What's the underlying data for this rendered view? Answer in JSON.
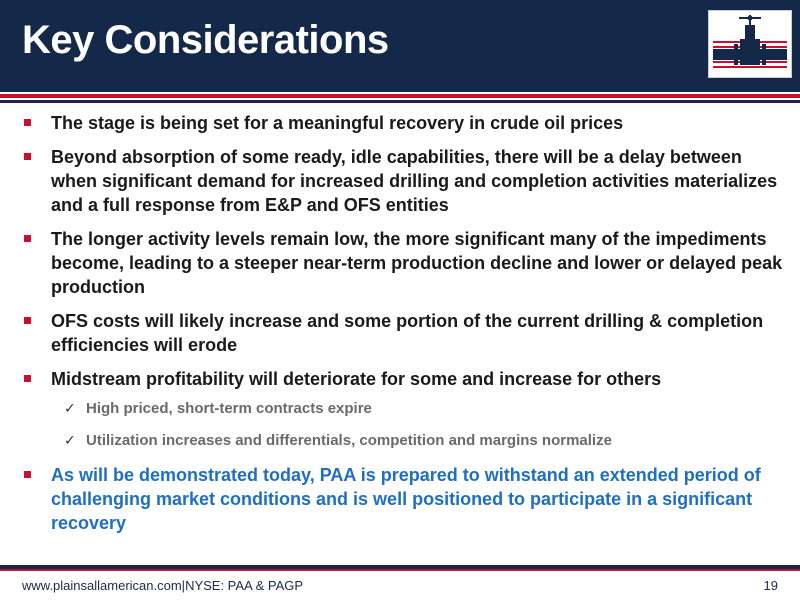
{
  "slide": {
    "title": "Key Considerations",
    "page_number": "19"
  },
  "logo": {
    "icon": "plains-valve-logo",
    "colors": {
      "navy": "#14284a",
      "red": "#c8102e"
    }
  },
  "bullets": [
    {
      "text": "The stage is being set for a meaningful recovery in crude oil prices"
    },
    {
      "text": "Beyond absorption of some ready, idle capabilities, there will be a delay between when significant demand for increased drilling and completion activities materializes and a full response from E&P and OFS entities"
    },
    {
      "text": "The longer activity levels remain low, the more significant many of the impediments become, leading to a steeper near-term production decline and lower or delayed peak production"
    },
    {
      "text": "OFS costs will likely increase and some portion of the current drilling & completion efficiencies will erode"
    },
    {
      "text": "Midstream profitability will deteriorate for some and increase for others",
      "sub_items": [
        {
          "marker": "✓",
          "text": "High priced, short-term contracts expire"
        },
        {
          "marker": "✓",
          "text": "Utilization increases and differentials, competition and margins normalize"
        }
      ]
    },
    {
      "text": "As will be demonstrated today, PAA is prepared to withstand an extended period of challenging market conditions and is well positioned to participate in a significant recovery"
    }
  ],
  "footer": {
    "website": "www.plainsallamerican.com",
    "separator": "|",
    "tickers": "NYSE: PAA & PAGP"
  },
  "colors": {
    "header_bg": "#14284a",
    "accent_red": "#c8102e",
    "highlight_blue": "#1f6fc1",
    "sub_text_gray": "#6a6a6a"
  }
}
